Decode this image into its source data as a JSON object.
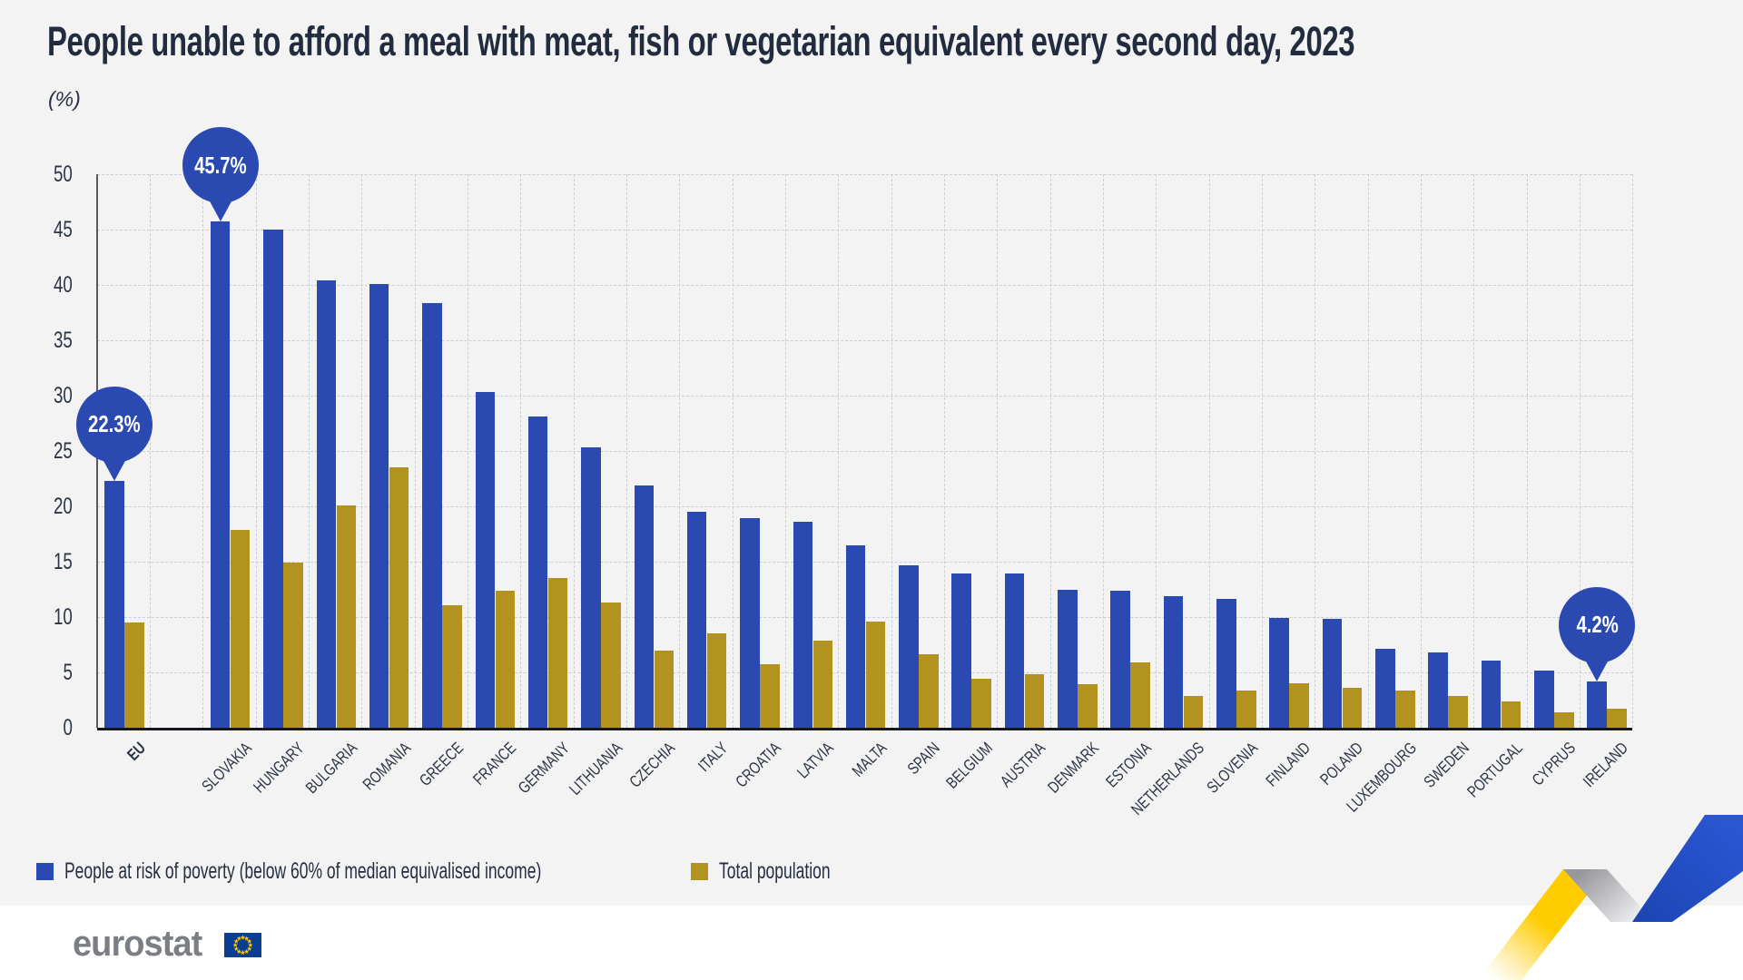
{
  "title": "People unable to afford a meal with meat, fish or vegetarian equivalent every second day, 2023",
  "unit_label": "(%)",
  "footer": {
    "logo_text": "eurostat"
  },
  "colors": {
    "poverty_blue": "#2a4ab2",
    "total_gold": "#b2931f",
    "background": "#f3f3f4",
    "grid": "#cdced3",
    "text": "#2b3443",
    "y_axis": "#595a60",
    "x_axis": "#16181d",
    "logo_gray": "#7c7e85",
    "flag_blue": "#0b3d91",
    "star_yellow": "#ffcc00",
    "ribbon_yellow": "#ffcc00",
    "ribbon_gray": "#97989d",
    "ribbon_blue": "#2350c8"
  },
  "chart_data": {
    "type": "bar",
    "title": "People unable to afford a meal with meat, fish or vegetarian equivalent every second day, 2023",
    "xlabel": "",
    "ylabel": "(%)",
    "ylim": [
      0,
      50
    ],
    "yticks": [
      0,
      5,
      10,
      15,
      20,
      25,
      30,
      35,
      40,
      45,
      50
    ],
    "grid": true,
    "legend_position": "bottom",
    "categories": [
      "EU",
      "SLOVAKIA",
      "HUNGARY",
      "BULGARIA",
      "ROMANIA",
      "GREECE",
      "FRANCE",
      "GERMANY",
      "LITHUANIA",
      "CZECHIA",
      "ITALY",
      "CROATIA",
      "LATVIA",
      "MALTA",
      "SPAIN",
      "BELGIUM",
      "AUSTRIA",
      "DENMARK",
      "ESTONIA",
      "NETHERLANDS",
      "SLOVENIA",
      "FINLAND",
      "POLAND",
      "LUXEMBOURG",
      "SWEDEN",
      "PORTUGAL",
      "CYPRUS",
      "IRELAND"
    ],
    "series": [
      {
        "name": "People at risk of poverty (below 60% of median equivalised income)",
        "color": "#2a4ab2",
        "values": [
          22.3,
          45.7,
          45.0,
          40.4,
          40.1,
          38.4,
          30.3,
          28.1,
          25.3,
          21.9,
          19.5,
          18.9,
          18.6,
          16.5,
          14.7,
          13.9,
          13.9,
          12.5,
          12.4,
          11.9,
          11.6,
          9.9,
          9.8,
          7.1,
          6.8,
          6.1,
          5.2,
          4.2
        ]
      },
      {
        "name": "Total population",
        "color": "#b2931f",
        "values": [
          9.5,
          17.9,
          14.9,
          20.1,
          23.5,
          11.1,
          12.4,
          13.5,
          11.3,
          7.0,
          8.5,
          5.7,
          7.9,
          9.6,
          6.6,
          4.4,
          4.8,
          3.9,
          5.9,
          2.9,
          3.4,
          4.0,
          3.6,
          3.4,
          2.9,
          2.4,
          1.4,
          1.7
        ]
      }
    ],
    "callouts": [
      {
        "category": "EU",
        "series": 0,
        "text": "22.3%"
      },
      {
        "category": "SLOVAKIA",
        "series": 0,
        "text": "45.7%"
      },
      {
        "category": "IRELAND",
        "series": 0,
        "text": "4.2%"
      }
    ]
  }
}
